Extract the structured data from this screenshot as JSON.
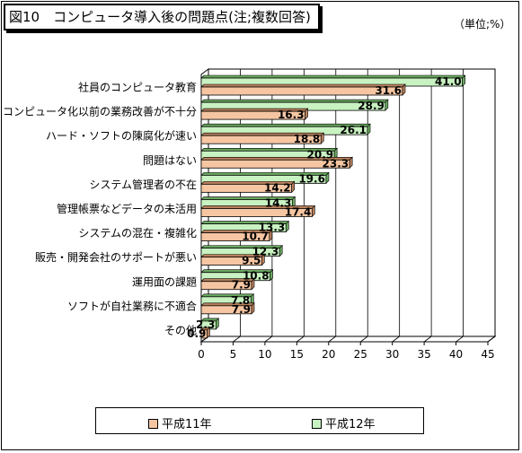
{
  "title": "図10　コンピュータ導入後の問題点(注;複数回答)",
  "unit": "（単位;%）",
  "colors": {
    "h11": "#f6c6a3",
    "h12": "#c9f2c2",
    "h11_side": "#b8805c",
    "h12_side": "#6aa860"
  },
  "chart_data": {
    "type": "bar",
    "orientation": "horizontal",
    "categories": [
      "社員のコンピュータ教育",
      "コンピュータ化以前の業務改善が不十分",
      "ハード・ソフトの陳腐化が速い",
      "問題はない",
      "システム管理者の不在",
      "管理帳票などデータの未活用",
      "システムの混在・複雑化",
      "販売・開発会社のサポートが悪い",
      "運用面の課題",
      "ソフトが自社業務に不適合",
      "その他"
    ],
    "series": [
      {
        "name": "平成12年",
        "values": [
          41.0,
          28.9,
          26.1,
          20.9,
          19.6,
          14.3,
          13.3,
          12.3,
          10.8,
          7.8,
          2.3
        ]
      },
      {
        "name": "平成11年",
        "values": [
          31.6,
          16.3,
          18.8,
          23.3,
          14.2,
          17.4,
          10.7,
          9.5,
          7.9,
          7.9,
          0.9
        ]
      }
    ],
    "value_labels": [
      [
        "41.0",
        "28.9",
        "26.1",
        "20.9",
        "19.6",
        "14.3",
        "13.3",
        "12.3",
        "10.8",
        "7.8",
        "2.3"
      ],
      [
        "31.6",
        "16.3",
        "18.8",
        "23.3",
        "14.2",
        "17.4",
        "10.7",
        "9.5",
        "7.9",
        "7.9",
        "0.9"
      ]
    ],
    "xlim": [
      0,
      45
    ],
    "ticks": [
      0,
      5,
      10,
      15,
      20,
      25,
      30,
      35,
      40,
      45
    ],
    "grid": true,
    "legend": {
      "position": "bottom",
      "items": [
        "平成11年",
        "平成12年"
      ]
    }
  }
}
